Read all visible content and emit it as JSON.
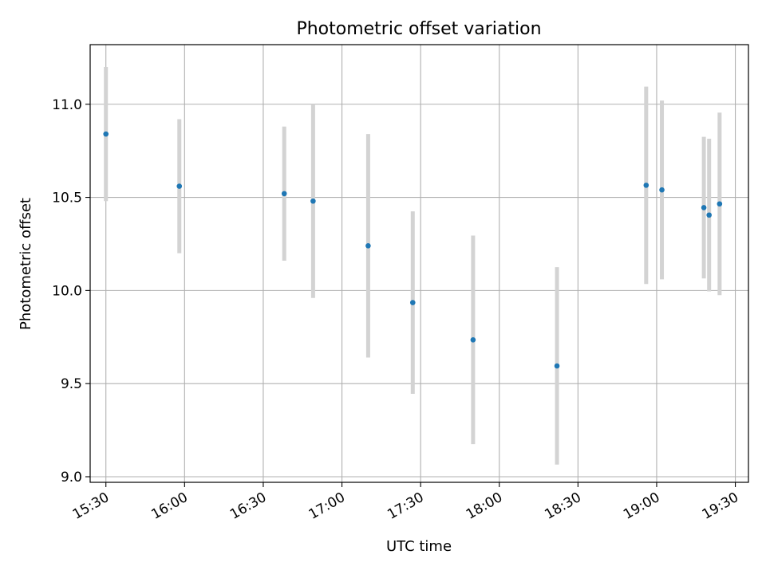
{
  "chart_data": {
    "type": "scatter",
    "title": "Photometric offset variation",
    "xlabel": "UTC time",
    "ylabel": "Photometric offset",
    "grid": true,
    "colors": {
      "points": "#1f77b4",
      "errorbars": "#d3d3d3",
      "grid": "#b0b0b0"
    },
    "xlim": [
      "15:24",
      "19:35"
    ],
    "ylim": [
      8.97,
      11.32
    ],
    "x_ticks": [
      "15:30",
      "16:00",
      "16:30",
      "17:00",
      "17:30",
      "18:00",
      "18:30",
      "19:00",
      "19:30"
    ],
    "y_ticks": [
      "9.0",
      "9.5",
      "10.0",
      "10.5",
      "11.0"
    ],
    "series": [
      {
        "points": [
          {
            "x": "15:30",
            "y": 10.84,
            "err_low": 10.48,
            "err_high": 11.2
          },
          {
            "x": "15:58",
            "y": 10.56,
            "err_low": 10.2,
            "err_high": 10.92
          },
          {
            "x": "16:38",
            "y": 10.52,
            "err_low": 10.16,
            "err_high": 10.88
          },
          {
            "x": "16:49",
            "y": 10.48,
            "err_low": 9.96,
            "err_high": 11.0
          },
          {
            "x": "17:10",
            "y": 10.24,
            "err_low": 9.64,
            "err_high": 10.84
          },
          {
            "x": "17:27",
            "y": 9.935,
            "err_low": 9.445,
            "err_high": 10.425
          },
          {
            "x": "17:50",
            "y": 9.735,
            "err_low": 9.175,
            "err_high": 10.295
          },
          {
            "x": "18:22",
            "y": 9.595,
            "err_low": 9.065,
            "err_high": 10.125
          },
          {
            "x": "18:56",
            "y": 10.565,
            "err_low": 10.035,
            "err_high": 11.095
          },
          {
            "x": "19:02",
            "y": 10.54,
            "err_low": 10.06,
            "err_high": 11.02
          },
          {
            "x": "19:18",
            "y": 10.445,
            "err_low": 10.065,
            "err_high": 10.825
          },
          {
            "x": "19:20",
            "y": 10.405,
            "err_low": 9.995,
            "err_high": 10.815
          },
          {
            "x": "19:24",
            "y": 10.465,
            "err_low": 9.975,
            "err_high": 10.955
          }
        ]
      }
    ]
  }
}
